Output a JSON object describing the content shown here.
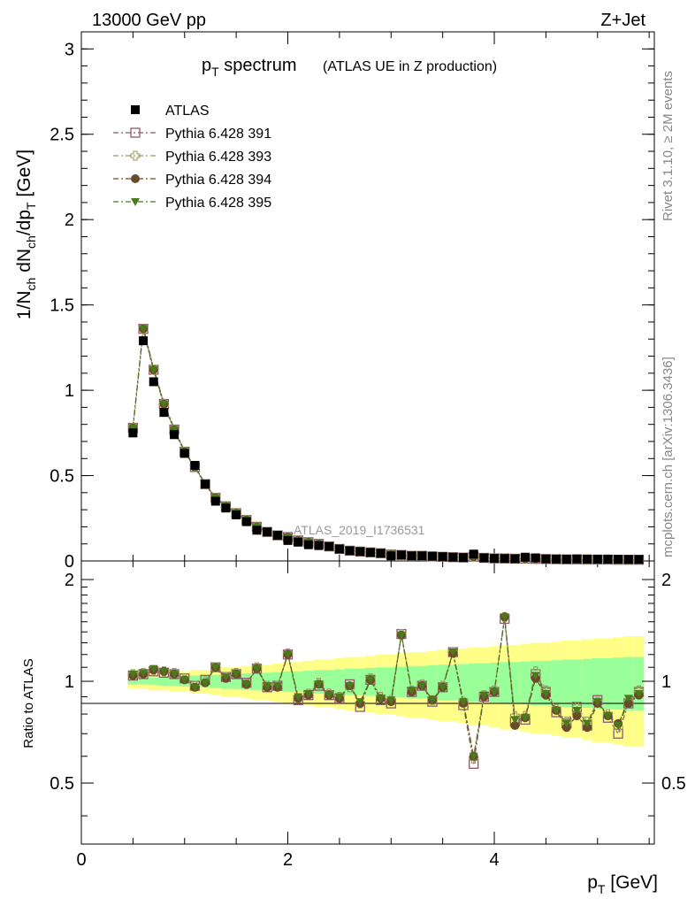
{
  "header": {
    "left": "13000 GeV pp",
    "right": "Z+Jet"
  },
  "side_labels": {
    "rivet": "Rivet 3.1.10, ≥ 2M events",
    "mcplots": "mcplots.cern.ch [arXiv:1306.3436]"
  },
  "title": {
    "main_p": "p",
    "main_sub": "T",
    "main_rest": " spectrum",
    "small": "(ATLAS UE in Z production)"
  },
  "watermark": "ATLAS_2019_I1736531",
  "axes": {
    "top_ylabel": "1/N_ch dN_ch/dp_T [GeV]",
    "bottom_ylabel": "Ratio to ATLAS",
    "xlabel": "p_T [GeV]"
  },
  "legend": [
    {
      "label": "ATLAS",
      "marker": "square-filled",
      "color": "#000000"
    },
    {
      "label": "Pythia 6.428 391",
      "marker": "square-open",
      "color": "#8b5a6b"
    },
    {
      "label": "Pythia 6.428 393",
      "marker": "cross-open",
      "color": "#9a9a5e"
    },
    {
      "label": "Pythia 6.428 394",
      "marker": "circle-filled",
      "color": "#6b4a2a"
    },
    {
      "label": "Pythia 6.428 395",
      "marker": "triangle-down",
      "color": "#4a7a1a"
    }
  ],
  "chart_data": {
    "type": "line",
    "x": [
      0.5,
      0.6,
      0.7,
      0.8,
      0.9,
      1.0,
      1.1,
      1.2,
      1.3,
      1.4,
      1.5,
      1.6,
      1.7,
      1.8,
      1.9,
      2.0,
      2.1,
      2.2,
      2.3,
      2.4,
      2.5,
      2.6,
      2.7,
      2.8,
      2.9,
      3.0,
      3.1,
      3.2,
      3.3,
      3.4,
      3.5,
      3.6,
      3.7,
      3.8,
      3.9,
      4.0,
      4.1,
      4.2,
      4.3,
      4.4,
      4.5,
      4.6,
      4.7,
      4.8,
      4.9,
      5.0,
      5.1,
      5.2,
      5.3,
      5.4
    ],
    "top": {
      "xlim": [
        0,
        5.55
      ],
      "ylim": [
        0,
        3.1
      ],
      "yticks": [
        0,
        0.5,
        1,
        1.5,
        2,
        2.5,
        3
      ],
      "data_values": [
        0.75,
        1.29,
        1.05,
        0.87,
        0.74,
        0.63,
        0.56,
        0.45,
        0.35,
        0.31,
        0.27,
        0.23,
        0.18,
        0.17,
        0.15,
        0.12,
        0.11,
        0.095,
        0.09,
        0.085,
        0.07,
        0.06,
        0.055,
        0.05,
        0.045,
        0.03,
        0.035,
        0.03,
        0.03,
        0.028,
        0.025,
        0.022,
        0.02,
        0.04,
        0.018,
        0.015,
        0.014,
        0.013,
        0.022,
        0.018,
        0.012,
        0.011,
        0.01,
        0.012,
        0.011,
        0.01,
        0.01,
        0.01,
        0.009,
        0.009
      ],
      "mc_values": [
        0.78,
        1.36,
        1.12,
        0.92,
        0.77,
        0.64,
        0.55,
        0.45,
        0.37,
        0.32,
        0.28,
        0.24,
        0.2,
        0.17,
        0.15,
        0.14,
        0.12,
        0.11,
        0.1,
        0.085,
        0.07,
        0.06,
        0.055,
        0.05,
        0.045,
        0.038,
        0.035,
        0.03,
        0.03,
        0.026,
        0.024,
        0.022,
        0.02,
        0.025,
        0.018,
        0.015,
        0.015,
        0.013,
        0.013,
        0.012,
        0.011,
        0.01,
        0.009,
        0.009,
        0.008,
        0.008,
        0.008,
        0.007,
        0.007,
        0.007
      ]
    },
    "ratio": {
      "ylim": [
        0.33,
        2.27
      ],
      "yticks": [
        0.5,
        1,
        2
      ],
      "band_inner_half": [
        0.02,
        0.02,
        0.025,
        0.03,
        0.03,
        0.035,
        0.04,
        0.04,
        0.045,
        0.05,
        0.05,
        0.055,
        0.06,
        0.06,
        0.065,
        0.07,
        0.07,
        0.075,
        0.08,
        0.08,
        0.085,
        0.09,
        0.09,
        0.095,
        0.1,
        0.1,
        0.105,
        0.11,
        0.11,
        0.115,
        0.12,
        0.12,
        0.125,
        0.13,
        0.13,
        0.135,
        0.14,
        0.14,
        0.145,
        0.15,
        0.15,
        0.155,
        0.16,
        0.16,
        0.165,
        0.17,
        0.17,
        0.175,
        0.18,
        0.18
      ],
      "band_outer_half": [
        0.05,
        0.05,
        0.06,
        0.06,
        0.07,
        0.07,
        0.08,
        0.08,
        0.09,
        0.1,
        0.1,
        0.11,
        0.12,
        0.12,
        0.13,
        0.14,
        0.14,
        0.15,
        0.16,
        0.16,
        0.17,
        0.18,
        0.18,
        0.19,
        0.2,
        0.2,
        0.21,
        0.22,
        0.22,
        0.23,
        0.24,
        0.24,
        0.25,
        0.26,
        0.26,
        0.27,
        0.28,
        0.28,
        0.29,
        0.3,
        0.3,
        0.31,
        0.32,
        0.32,
        0.33,
        0.34,
        0.34,
        0.35,
        0.36,
        0.36
      ],
      "series": [
        {
          "name": "Pythia 6.428 391",
          "values": [
            1.04,
            1.05,
            1.07,
            1.06,
            1.05,
            1.02,
            0.97,
            1.01,
            1.1,
            1.03,
            1.05,
            0.99,
            1.09,
            0.96,
            0.97,
            1.2,
            0.88,
            0.91,
            0.97,
            0.91,
            0.89,
            0.98,
            0.84,
            1.01,
            0.88,
            0.86,
            1.38,
            0.93,
            0.97,
            0.87,
            0.96,
            1.22,
            0.85,
            0.57,
            0.9,
            0.93,
            1.53,
            0.76,
            0.77,
            1.05,
            0.93,
            0.81,
            0.75,
            0.84,
            0.74,
            0.88,
            0.78,
            0.7,
            0.86,
            0.93
          ]
        },
        {
          "name": "Pythia 6.428 393",
          "values": [
            1.05,
            1.06,
            1.08,
            1.07,
            1.06,
            1.02,
            0.97,
            1.0,
            1.1,
            1.03,
            1.06,
            0.98,
            1.1,
            0.97,
            0.97,
            1.21,
            0.89,
            0.92,
            0.99,
            0.92,
            0.9,
            0.96,
            0.86,
            1.02,
            0.9,
            0.88,
            1.38,
            0.94,
            0.98,
            0.88,
            0.97,
            1.22,
            0.87,
            0.59,
            0.91,
            0.94,
            1.55,
            0.79,
            0.79,
            1.07,
            0.94,
            0.83,
            0.76,
            0.84,
            0.76,
            0.87,
            0.8,
            0.73,
            0.87,
            0.94
          ]
        },
        {
          "name": "Pythia 6.428 394",
          "values": [
            1.04,
            1.05,
            1.08,
            1.07,
            1.05,
            1.01,
            0.96,
            0.99,
            1.1,
            1.02,
            1.05,
            0.98,
            1.09,
            0.96,
            0.96,
            1.2,
            0.89,
            0.91,
            0.98,
            0.91,
            0.89,
            0.97,
            0.86,
            1.01,
            0.89,
            0.87,
            1.37,
            0.93,
            0.97,
            0.88,
            0.96,
            1.21,
            0.86,
            0.6,
            0.9,
            0.93,
            1.55,
            0.74,
            0.78,
            1.02,
            0.91,
            0.82,
            0.73,
            0.79,
            0.73,
            0.86,
            0.79,
            0.75,
            0.86,
            0.91
          ]
        },
        {
          "name": "Pythia 6.428 395",
          "values": [
            1.05,
            1.06,
            1.09,
            1.07,
            1.05,
            1.01,
            0.96,
            0.99,
            1.1,
            1.03,
            1.05,
            0.98,
            1.09,
            0.97,
            0.97,
            1.2,
            0.9,
            0.92,
            0.98,
            0.91,
            0.9,
            0.97,
            0.87,
            1.01,
            0.89,
            0.88,
            1.37,
            0.94,
            0.97,
            0.88,
            0.96,
            1.22,
            0.87,
            0.6,
            0.91,
            0.93,
            1.55,
            0.77,
            0.78,
            1.04,
            0.92,
            0.82,
            0.75,
            0.82,
            0.75,
            0.87,
            0.79,
            0.74,
            0.89,
            0.92
          ]
        }
      ]
    },
    "xticks": [
      0,
      2,
      4
    ],
    "colors": {
      "band_inner": "#99ff99",
      "band_outer": "#ffff88"
    }
  }
}
